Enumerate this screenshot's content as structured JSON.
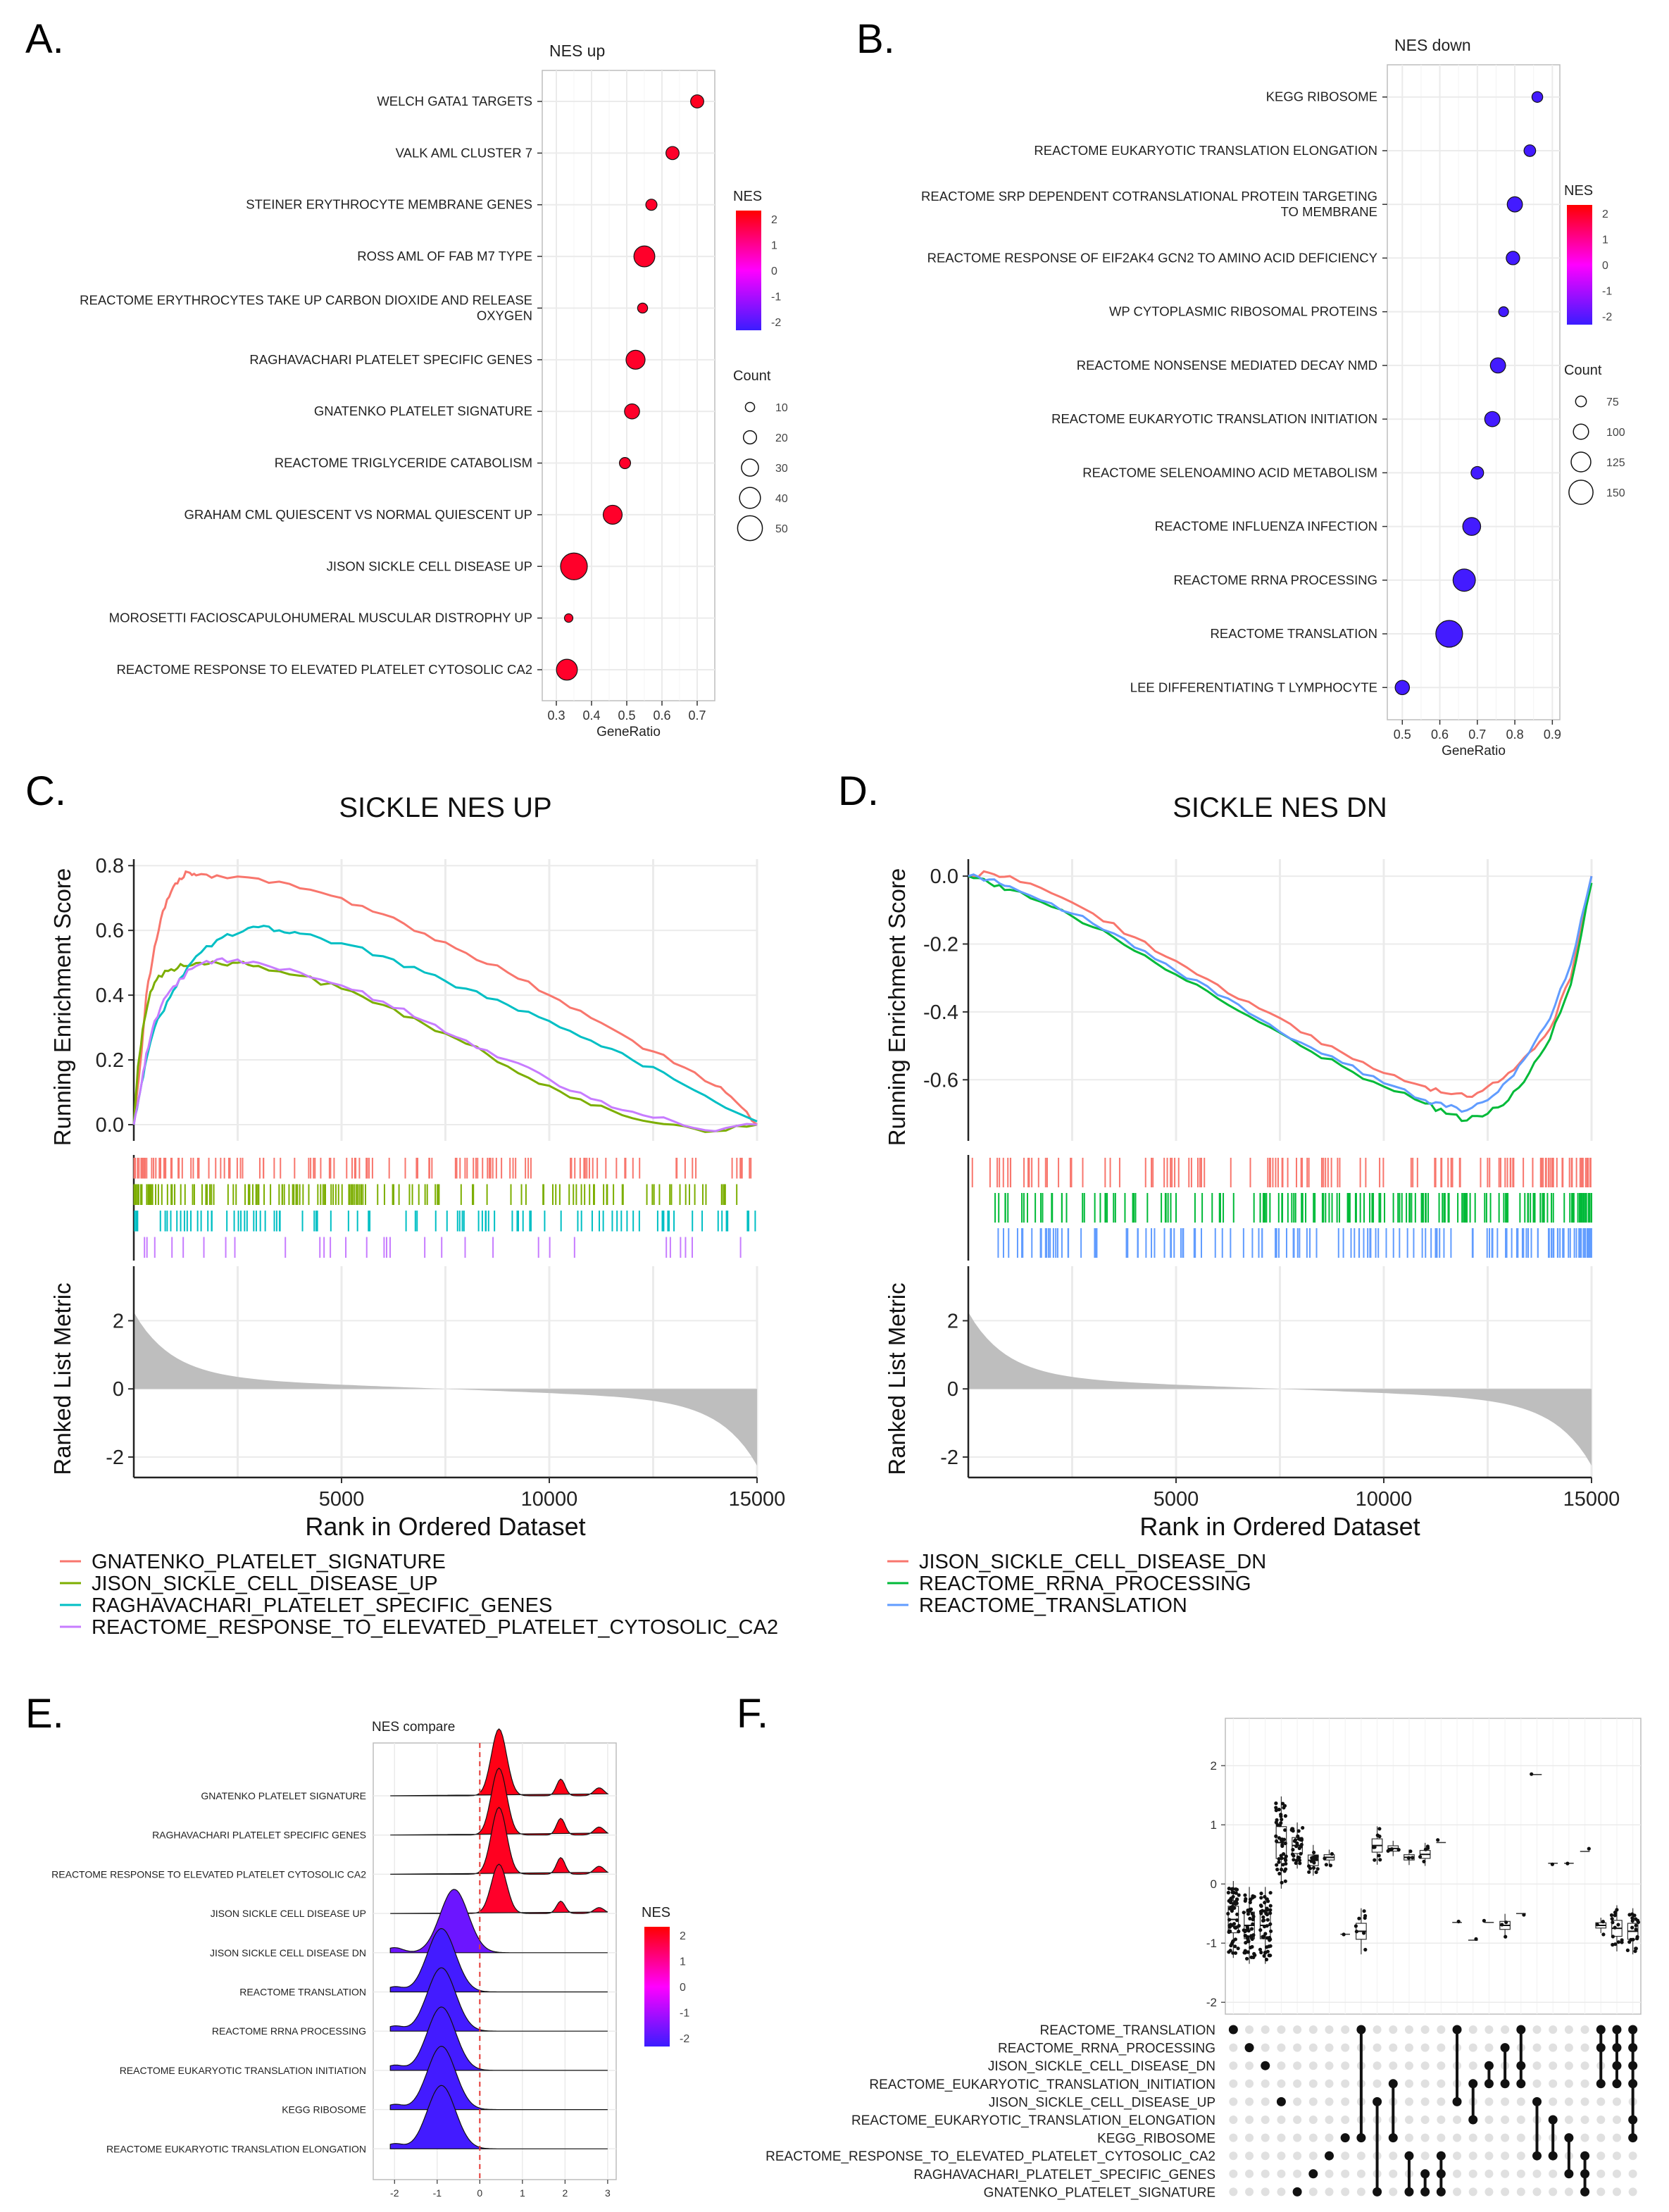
{
  "panel_labels": [
    "A.",
    "B.",
    "C.",
    "D.",
    "E.",
    "F."
  ],
  "colors": {
    "nes_high": "#FF0000",
    "nes_low": "#3B1CFF",
    "grid": "#EBEBEB",
    "salmon": "#F8766D",
    "olive": "#7CAE00",
    "teal": "#00BFC4",
    "violet": "#C77CFF",
    "green": "#00BA38",
    "blue": "#619CFF"
  },
  "chart_data": [
    {
      "id": "A",
      "type": "scatter",
      "title": "NES up",
      "xlabel": "GeneRatio",
      "xlim": [
        0.26,
        0.75
      ],
      "xticks": [
        0.3,
        0.4,
        0.5,
        0.6,
        0.7
      ],
      "xtick_labels": [
        "0.3",
        "0.4",
        "0.5",
        "0.6",
        "0.7"
      ],
      "terms": [
        {
          "label": "WELCH GATA1 TARGETS",
          "x": 0.7,
          "count": 20,
          "nes": 2.1
        },
        {
          "label": "VALK AML CLUSTER 7",
          "x": 0.63,
          "count": 20,
          "nes": 2.0
        },
        {
          "label": "STEINER ERYTHROCYTE MEMBRANE GENES",
          "x": 0.57,
          "count": 15,
          "nes": 2.0
        },
        {
          "label": "ROSS AML OF FAB M7 TYPE",
          "x": 0.55,
          "count": 40,
          "nes": 2.0
        },
        {
          "label": "REACTOME ERYTHROCYTES TAKE UP CARBON DIOXIDE AND RELEASE OXYGEN",
          "x": 0.545,
          "count": 12,
          "nes": 2.0
        },
        {
          "label": "RAGHAVACHARI PLATELET SPECIFIC GENES",
          "x": 0.525,
          "count": 35,
          "nes": 2.0
        },
        {
          "label": "GNATENKO PLATELET SIGNATURE",
          "x": 0.515,
          "count": 25,
          "nes": 2.0
        },
        {
          "label": "REACTOME TRIGLYCERIDE CATABOLISM",
          "x": 0.495,
          "count": 15,
          "nes": 2.0
        },
        {
          "label": "GRAHAM CML QUIESCENT VS NORMAL QUIESCENT UP",
          "x": 0.46,
          "count": 35,
          "nes": 2.0
        },
        {
          "label": "JISON SICKLE CELL DISEASE UP",
          "x": 0.35,
          "count": 55,
          "nes": 2.0
        },
        {
          "label": "MOROSETTI FACIOSCAPULOHUMERAL MUSCULAR DISTROPHY UP",
          "x": 0.335,
          "count": 8,
          "nes": 2.0
        },
        {
          "label": "REACTOME RESPONSE TO ELEVATED PLATELET CYTOSOLIC CA2",
          "x": 0.33,
          "count": 40,
          "nes": 2.0
        }
      ],
      "legend_nes": {
        "title": "NES",
        "ticks": [
          "2",
          "1",
          "0",
          "-1",
          "-2"
        ]
      },
      "legend_count": {
        "title": "Count",
        "values": [
          10,
          20,
          30,
          40,
          50
        ]
      }
    },
    {
      "id": "B",
      "type": "scatter",
      "title": "NES down",
      "xlabel": "GeneRatio",
      "xlim": [
        0.46,
        0.92
      ],
      "xticks": [
        0.5,
        0.6,
        0.7,
        0.8,
        0.9
      ],
      "xtick_labels": [
        "0.5",
        "0.6",
        "0.7",
        "0.8",
        "0.9"
      ],
      "terms": [
        {
          "label": "KEGG RIBOSOME",
          "x": 0.86,
          "count": 75,
          "nes": -2.3
        },
        {
          "label": "REACTOME EUKARYOTIC TRANSLATION ELONGATION",
          "x": 0.84,
          "count": 80,
          "nes": -2.3
        },
        {
          "label": "REACTOME SRP DEPENDENT COTRANSLATIONAL PROTEIN TARGETING TO MEMBRANE",
          "x": 0.8,
          "count": 100,
          "nes": -2.3
        },
        {
          "label": "REACTOME RESPONSE OF EIF2AK4 GCN2 TO AMINO ACID DEFICIENCY",
          "x": 0.795,
          "count": 90,
          "nes": -2.3
        },
        {
          "label": "WP CYTOPLASMIC RIBOSOMAL PROTEINS",
          "x": 0.77,
          "count": 70,
          "nes": -2.3
        },
        {
          "label": "REACTOME NONSENSE MEDIATED DECAY NMD",
          "x": 0.755,
          "count": 100,
          "nes": -2.3
        },
        {
          "label": "REACTOME EUKARYOTIC TRANSLATION INITIATION",
          "x": 0.74,
          "count": 100,
          "nes": -2.3
        },
        {
          "label": "REACTOME SELENOAMINO ACID METABOLISM",
          "x": 0.7,
          "count": 85,
          "nes": -2.3
        },
        {
          "label": "REACTOME INFLUENZA INFECTION",
          "x": 0.685,
          "count": 115,
          "nes": -2.3
        },
        {
          "label": "REACTOME RRNA PROCESSING",
          "x": 0.665,
          "count": 140,
          "nes": -2.3
        },
        {
          "label": "REACTOME TRANSLATION",
          "x": 0.625,
          "count": 165,
          "nes": -2.3
        },
        {
          "label": "LEE DIFFERENTIATING T LYMPHOCYTE",
          "x": 0.5,
          "count": 95,
          "nes": -2.3
        }
      ],
      "legend_nes": {
        "title": "NES",
        "ticks": [
          "2",
          "1",
          "0",
          "-1",
          "-2"
        ]
      },
      "legend_count": {
        "title": "Count",
        "values": [
          75,
          100,
          125,
          150
        ]
      }
    },
    {
      "id": "C",
      "type": "line",
      "title": "SICKLE NES UP",
      "ylabel_top": "Running Enrichment Score",
      "ylabel_bottom": "Ranked List Metric",
      "xlabel": "Rank in Ordered Dataset",
      "xlim": [
        0,
        15000
      ],
      "xticks": [
        5000,
        10000,
        15000
      ],
      "xtick_labels": [
        "5000",
        "10000",
        "15000"
      ],
      "ylim": [
        -0.05,
        0.82
      ],
      "yticks": [
        0.0,
        0.2,
        0.4,
        0.6,
        0.8
      ],
      "ytick_labels": [
        "0.0",
        "0.2",
        "0.4",
        "0.6",
        "0.8"
      ],
      "metric_yticks": [
        2,
        0,
        -2
      ],
      "metric_ytick_labels": [
        "2",
        "0",
        "-2"
      ],
      "series": [
        {
          "name": "GNATENKO_PLATELET_SIGNATURE",
          "color": "#F8766D",
          "x": [
            0,
            150,
            300,
            500,
            700,
            900,
            1100,
            1300,
            1500,
            2000,
            3000,
            4000,
            5000,
            6000,
            7000,
            8000,
            9000,
            10000,
            11000,
            12000,
            13000,
            14000,
            14500,
            15000
          ],
          "y": [
            0.0,
            0.18,
            0.4,
            0.55,
            0.66,
            0.72,
            0.76,
            0.78,
            0.77,
            0.77,
            0.76,
            0.73,
            0.7,
            0.65,
            0.59,
            0.53,
            0.47,
            0.4,
            0.33,
            0.26,
            0.19,
            0.12,
            0.07,
            0.0
          ]
        },
        {
          "name": "JISON_SICKLE_CELL_DISEASE_UP",
          "color": "#7CAE00",
          "x": [
            0,
            100,
            250,
            400,
            600,
            900,
            1200,
            1600,
            2000,
            2500,
            3000,
            4000,
            5000,
            6000,
            7000,
            8000,
            9000,
            10000,
            11000,
            12000,
            13000,
            14000,
            15000
          ],
          "y": [
            0.0,
            0.18,
            0.32,
            0.41,
            0.46,
            0.48,
            0.49,
            0.5,
            0.5,
            0.5,
            0.49,
            0.46,
            0.42,
            0.37,
            0.31,
            0.25,
            0.18,
            0.12,
            0.06,
            0.02,
            0.0,
            -0.02,
            0.0
          ]
        },
        {
          "name": "RAGHAVACHARI_PLATELET_SPECIFIC_GENES",
          "color": "#00BFC4",
          "x": [
            0,
            150,
            300,
            500,
            800,
            1100,
            1500,
            2000,
            2500,
            3000,
            3500,
            4000,
            5000,
            6000,
            7000,
            8000,
            9000,
            10000,
            11000,
            12000,
            13000,
            14000,
            15000
          ],
          "y": [
            0.0,
            0.1,
            0.2,
            0.3,
            0.38,
            0.45,
            0.52,
            0.57,
            0.59,
            0.61,
            0.6,
            0.59,
            0.56,
            0.52,
            0.47,
            0.42,
            0.37,
            0.32,
            0.26,
            0.2,
            0.14,
            0.07,
            0.01
          ]
        },
        {
          "name": "REACTOME_RESPONSE_TO_ELEVATED_PLATELET_CYTOSOLIC_CA2",
          "color": "#C77CFF",
          "x": [
            0,
            150,
            300,
            500,
            800,
            1100,
            1500,
            2000,
            2500,
            3000,
            4000,
            5000,
            6000,
            7000,
            8000,
            9000,
            10000,
            11000,
            12000,
            13000,
            14000,
            15000
          ],
          "y": [
            0.0,
            0.1,
            0.22,
            0.32,
            0.4,
            0.45,
            0.49,
            0.51,
            0.51,
            0.5,
            0.47,
            0.43,
            0.38,
            0.32,
            0.26,
            0.2,
            0.14,
            0.08,
            0.04,
            0.01,
            -0.02,
            0.0
          ]
        }
      ]
    },
    {
      "id": "D",
      "type": "line",
      "title": "SICKLE NES DN",
      "ylabel_top": "Running Enrichment Score",
      "ylabel_bottom": "Ranked List Metric",
      "xlabel": "Rank in Ordered Dataset",
      "xlim": [
        0,
        15000
      ],
      "xticks": [
        5000,
        10000,
        15000
      ],
      "xtick_labels": [
        "5000",
        "10000",
        "15000"
      ],
      "ylim": [
        -0.78,
        0.05
      ],
      "yticks": [
        0.0,
        -0.2,
        -0.4,
        -0.6
      ],
      "ytick_labels": [
        "0.0",
        "-0.2",
        "-0.4",
        "-0.6"
      ],
      "metric_yticks": [
        2,
        0,
        -2
      ],
      "metric_ytick_labels": [
        "2",
        "0",
        "-2"
      ],
      "series": [
        {
          "name": "JISON_SICKLE_CELL_DISEASE_DN",
          "color": "#F8766D",
          "x": [
            0,
            500,
            1000,
            2000,
            3000,
            4000,
            5000,
            6000,
            7000,
            8000,
            9000,
            10000,
            11000,
            11500,
            12000,
            12500,
            13000,
            13500,
            14000,
            14500,
            15000
          ],
          "y": [
            0.0,
            0.01,
            0.0,
            -0.05,
            -0.11,
            -0.18,
            -0.25,
            -0.32,
            -0.39,
            -0.46,
            -0.52,
            -0.58,
            -0.62,
            -0.64,
            -0.65,
            -0.62,
            -0.58,
            -0.52,
            -0.45,
            -0.3,
            0.0
          ]
        },
        {
          "name": "REACTOME_RRNA_PROCESSING",
          "color": "#00BA38",
          "x": [
            0,
            500,
            1000,
            2000,
            3000,
            4000,
            5000,
            6000,
            7000,
            8000,
            9000,
            10000,
            11000,
            11500,
            12000,
            12500,
            13000,
            13500,
            14000,
            14500,
            15000
          ],
          "y": [
            0.0,
            -0.02,
            -0.04,
            -0.09,
            -0.15,
            -0.22,
            -0.29,
            -0.36,
            -0.43,
            -0.5,
            -0.56,
            -0.62,
            -0.67,
            -0.7,
            -0.72,
            -0.7,
            -0.66,
            -0.58,
            -0.48,
            -0.32,
            -0.02
          ]
        },
        {
          "name": "REACTOME_TRANSLATION",
          "color": "#619CFF",
          "x": [
            0,
            500,
            1000,
            2000,
            3000,
            4000,
            5000,
            6000,
            7000,
            8000,
            9000,
            10000,
            11000,
            11500,
            12000,
            12500,
            13000,
            13500,
            14000,
            14500,
            15000
          ],
          "y": [
            0.0,
            -0.01,
            -0.03,
            -0.08,
            -0.14,
            -0.21,
            -0.28,
            -0.35,
            -0.42,
            -0.49,
            -0.55,
            -0.61,
            -0.66,
            -0.68,
            -0.69,
            -0.66,
            -0.6,
            -0.52,
            -0.42,
            -0.26,
            0.0
          ]
        }
      ]
    },
    {
      "id": "E",
      "type": "area",
      "title": "NES compare",
      "xlim": [
        -2.5,
        3.2
      ],
      "xticks": [
        -2,
        -1,
        0,
        1,
        2,
        3
      ],
      "xtick_labels": [
        "-2",
        "-1",
        "0",
        "1",
        "2",
        "3"
      ],
      "ridges": [
        {
          "label": "GNATENKO PLATELET SIGNATURE",
          "nes": 2.2
        },
        {
          "label": "RAGHAVACHARI PLATELET SPECIFIC GENES",
          "nes": 2.2
        },
        {
          "label": "REACTOME RESPONSE TO ELEVATED PLATELET CYTOSOLIC CA2",
          "nes": 2.1
        },
        {
          "label": "JISON SICKLE CELL DISEASE UP",
          "nes": 2.0
        },
        {
          "label": "JISON SICKLE CELL DISEASE DN",
          "nes": -1.8
        },
        {
          "label": "REACTOME TRANSLATION",
          "nes": -2.3
        },
        {
          "label": "REACTOME RRNA PROCESSING",
          "nes": -2.3
        },
        {
          "label": "REACTOME EUKARYOTIC TRANSLATION INITIATION",
          "nes": -2.3
        },
        {
          "label": "KEGG RIBOSOME",
          "nes": -2.3
        },
        {
          "label": "REACTOME EUKARYOTIC TRANSLATION ELONGATION",
          "nes": -2.3
        }
      ],
      "legend_nes": {
        "title": "NES",
        "ticks": [
          "2",
          "1",
          "0",
          "-1",
          "-2"
        ]
      }
    },
    {
      "id": "F",
      "type": "scatter",
      "title": "",
      "ylim": [
        -2.2,
        2.8
      ],
      "yticks": [
        2,
        1,
        0,
        -1,
        -2
      ],
      "ytick_labels": [
        "2",
        "1",
        "0",
        "-1",
        "-2"
      ],
      "sets": [
        "REACTOME_TRANSLATION",
        "REACTOME_RRNA_PROCESSING",
        "JISON_SICKLE_CELL_DISEASE_DN",
        "REACTOME_EUKARYOTIC_TRANSLATION_INITIATION",
        "JISON_SICKLE_CELL_DISEASE_UP",
        "REACTOME_EUKARYOTIC_TRANSLATION_ELONGATION",
        "KEGG_RIBOSOME",
        "REACTOME_RESPONSE_TO_ELEVATED_PLATELET_CYTOSOLIC_CA2",
        "RAGHAVACHARI_PLATELET_SPECIFIC_GENES",
        "GNATENKO_PLATELET_SIGNATURE"
      ],
      "columns": [
        {
          "members": [
            0
          ],
          "median": -0.6,
          "spread": 0.5,
          "n": 60
        },
        {
          "members": [
            1
          ],
          "median": -0.7,
          "spread": 0.5,
          "n": 50
        },
        {
          "members": [
            2
          ],
          "median": -0.7,
          "spread": 0.5,
          "n": 50
        },
        {
          "members": [
            4
          ],
          "median": 0.7,
          "spread": 0.6,
          "n": 45
        },
        {
          "members": [
            9
          ],
          "median": 0.65,
          "spread": 0.3,
          "n": 30
        },
        {
          "members": [
            8
          ],
          "median": 0.4,
          "spread": 0.2,
          "n": 15
        },
        {
          "members": [
            7
          ],
          "median": 0.45,
          "spread": 0.1,
          "n": 4
        },
        {
          "members": [
            6
          ],
          "median": -0.85,
          "spread": 0.0,
          "n": 1
        },
        {
          "members": [
            6,
            0
          ],
          "median": -0.8,
          "spread": 0.3,
          "n": 8
        },
        {
          "members": [
            4,
            9
          ],
          "median": 0.65,
          "spread": 0.25,
          "n": 8
        },
        {
          "members": [
            6,
            3
          ],
          "median": 0.6,
          "spread": 0.1,
          "n": 4
        },
        {
          "members": [
            9,
            7
          ],
          "median": 0.45,
          "spread": 0.1,
          "n": 3
        },
        {
          "members": [
            8,
            9
          ],
          "median": 0.5,
          "spread": 0.15,
          "n": 5
        },
        {
          "members": [
            9,
            8,
            7
          ],
          "median": 0.7,
          "spread": 0.0,
          "n": 1
        },
        {
          "members": [
            0,
            4
          ],
          "median": -0.65,
          "spread": 0.0,
          "n": 1
        },
        {
          "members": [
            3,
            5
          ],
          "median": -0.95,
          "spread": 0.0,
          "n": 1
        },
        {
          "members": [
            2,
            3
          ],
          "median": -0.65,
          "spread": 0.0,
          "n": 1
        },
        {
          "members": [
            1,
            3
          ],
          "median": -0.7,
          "spread": 0.15,
          "n": 3
        },
        {
          "members": [
            0,
            2,
            3
          ],
          "median": -0.5,
          "spread": 0.0,
          "n": 1
        },
        {
          "members": [
            4,
            7
          ],
          "median": 1.85,
          "spread": 0.0,
          "n": 1
        },
        {
          "members": [
            5,
            7
          ],
          "median": 0.35,
          "spread": 0.0,
          "n": 1
        },
        {
          "members": [
            6,
            8
          ],
          "median": 0.35,
          "spread": 0.0,
          "n": 1
        },
        {
          "members": [
            7,
            8,
            9
          ],
          "median": 0.55,
          "spread": 0.0,
          "n": 1
        },
        {
          "members": [
            0,
            1,
            3
          ],
          "median": -0.7,
          "spread": 0.1,
          "n": 3
        },
        {
          "members": [
            0,
            1,
            2,
            3
          ],
          "median": -0.75,
          "spread": 0.3,
          "n": 15
        },
        {
          "members": [
            0,
            1,
            2,
            3,
            5,
            6
          ],
          "median": -0.8,
          "spread": 0.3,
          "n": 20
        }
      ]
    }
  ]
}
